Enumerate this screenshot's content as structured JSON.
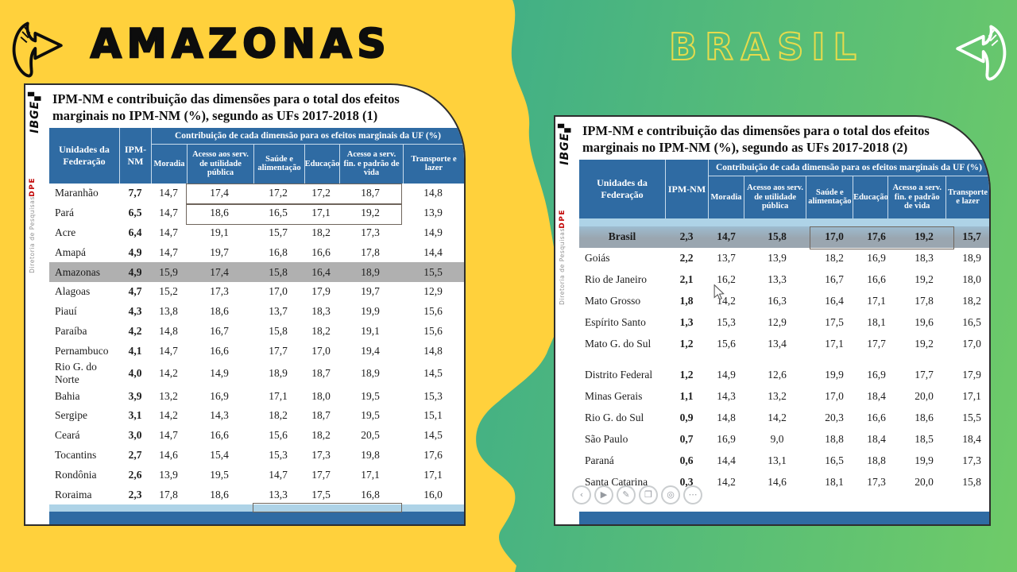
{
  "colors": {
    "yellow_bg": "#ffd13c",
    "teal_bg": "#1b93a1",
    "green_bg": "#6fcb68",
    "header_blue": "#2f6ba3",
    "light_blue_row": "#aed3e7",
    "amazonas_highlight": "#b0b0b0",
    "brasil_highlight": "#9aa6b0",
    "dpe_red": "#c00000",
    "brasil_outline": "#e6db4c"
  },
  "left_panel": {
    "heading": "AMAZONAS",
    "slide": {
      "brand": {
        "logo": "IBGE",
        "dept": "DPE",
        "directorate": "Diretoria de Pesquisas"
      },
      "title": "IPM-NM e contribuição das dimensões para o total dos efeitos marginais no IPM-NM (%), segundo as UFs 2017-2018 (1)",
      "table": {
        "col_uf": "Unidades da Federação",
        "col_ipm": "IPM-NM",
        "group_header": "Contribuição de cada dimensão para os efeitos marginais da UF (%)",
        "dims": [
          "Moradia",
          "Acesso aos serv. de utilidade pública",
          "Saúde e alimentação",
          "Educação",
          "Acesso a serv. fin. e padrão de vida",
          "Transporte e lazer"
        ],
        "rows": [
          {
            "uf": "Maranhão",
            "ipm": "7,7",
            "vals": [
              "14,7",
              "17,4",
              "17,2",
              "17,2",
              "18,7",
              "14,8"
            ],
            "box": [
              1,
              4
            ]
          },
          {
            "uf": "Pará",
            "ipm": "6,5",
            "vals": [
              "14,7",
              "18,6",
              "16,5",
              "17,1",
              "19,2",
              "13,9"
            ],
            "box": [
              1,
              4
            ]
          },
          {
            "uf": "Acre",
            "ipm": "6,4",
            "vals": [
              "14,7",
              "19,1",
              "15,7",
              "18,2",
              "17,3",
              "14,9"
            ]
          },
          {
            "uf": "Amapá",
            "ipm": "4,9",
            "vals": [
              "14,7",
              "19,7",
              "16,8",
              "16,6",
              "17,8",
              "14,4"
            ]
          },
          {
            "uf": "Amazonas",
            "ipm": "4,9",
            "vals": [
              "15,9",
              "17,4",
              "15,8",
              "16,4",
              "18,9",
              "15,5"
            ],
            "highlight": true
          },
          {
            "uf": "Alagoas",
            "ipm": "4,7",
            "vals": [
              "15,2",
              "17,3",
              "17,0",
              "17,9",
              "19,7",
              "12,9"
            ]
          },
          {
            "uf": "Piauí",
            "ipm": "4,3",
            "vals": [
              "13,8",
              "18,6",
              "13,7",
              "18,3",
              "19,9",
              "15,6"
            ]
          },
          {
            "uf": "Paraíba",
            "ipm": "4,2",
            "vals": [
              "14,8",
              "16,7",
              "15,8",
              "18,2",
              "19,1",
              "15,6"
            ]
          },
          {
            "uf": "Pernambuco",
            "ipm": "4,1",
            "vals": [
              "14,7",
              "16,6",
              "17,7",
              "17,0",
              "19,4",
              "14,8"
            ]
          },
          {
            "uf": "Rio G. do Norte",
            "ipm": "4,0",
            "vals": [
              "14,2",
              "14,9",
              "18,9",
              "18,7",
              "18,9",
              "14,5"
            ]
          },
          {
            "uf": "Bahia",
            "ipm": "3,9",
            "vals": [
              "13,2",
              "16,9",
              "17,1",
              "18,0",
              "19,5",
              "15,3"
            ]
          },
          {
            "uf": "Sergipe",
            "ipm": "3,1",
            "vals": [
              "14,2",
              "14,3",
              "18,2",
              "18,7",
              "19,5",
              "15,1"
            ]
          },
          {
            "uf": "Ceará",
            "ipm": "3,0",
            "vals": [
              "14,7",
              "16,6",
              "15,6",
              "18,2",
              "20,5",
              "14,5"
            ]
          },
          {
            "uf": "Tocantins",
            "ipm": "2,7",
            "vals": [
              "14,6",
              "15,4",
              "15,3",
              "17,3",
              "19,8",
              "17,6"
            ]
          },
          {
            "uf": "Rondônia",
            "ipm": "2,6",
            "vals": [
              "13,9",
              "19,5",
              "14,7",
              "17,7",
              "17,1",
              "17,1"
            ]
          },
          {
            "uf": "Roraima",
            "ipm": "2,3",
            "vals": [
              "17,8",
              "18,6",
              "13,3",
              "17,5",
              "16,8",
              "16,0"
            ]
          }
        ]
      }
    }
  },
  "right_panel": {
    "heading": "BRASIL",
    "slide": {
      "brand": {
        "logo": "IBGE",
        "dept": "DPE",
        "directorate": "Diretoria de Pesquisas"
      },
      "title": "IPM-NM e contribuição das dimensões para o total dos efeitos marginais no IPM-NM (%), segundo as UFs 2017-2018 (2)",
      "table": {
        "col_uf": "Unidades da Federação",
        "col_ipm": "IPM-NM",
        "group_header": "Contribuição de cada dimensão para os efeitos marginais da UF (%)",
        "dims": [
          "Moradia",
          "Acesso aos serv. de utilidade pública",
          "Saúde e alimentação",
          "Educação",
          "Acesso a serv. fin. e padrão de vida",
          "Transporte e lazer"
        ],
        "rows": [
          {
            "uf": "Brasil",
            "ipm": "2,3",
            "vals": [
              "14,7",
              "15,8",
              "17,0",
              "17,6",
              "19,2",
              "15,7"
            ],
            "highlight": true,
            "bold": true,
            "box": [
              2,
              4
            ]
          },
          {
            "uf": "Goiás",
            "ipm": "2,2",
            "vals": [
              "13,7",
              "13,9",
              "18,2",
              "16,9",
              "18,3",
              "18,9"
            ]
          },
          {
            "uf": "Rio de Janeiro",
            "ipm": "2,1",
            "vals": [
              "16,2",
              "13,3",
              "16,7",
              "16,6",
              "19,2",
              "18,0"
            ]
          },
          {
            "uf": "Mato Grosso",
            "ipm": "1,8",
            "vals": [
              "14,2",
              "16,3",
              "16,4",
              "17,1",
              "17,8",
              "18,2"
            ]
          },
          {
            "uf": "Espírito Santo",
            "ipm": "1,3",
            "vals": [
              "15,3",
              "12,9",
              "17,5",
              "18,1",
              "19,6",
              "16,5"
            ]
          },
          {
            "uf": "Mato G. do Sul",
            "ipm": "1,2",
            "vals": [
              "15,6",
              "13,4",
              "17,1",
              "17,7",
              "19,2",
              "17,0"
            ]
          },
          {
            "uf": "Distrito Federal",
            "ipm": "1,2",
            "vals": [
              "14,9",
              "12,6",
              "19,9",
              "16,9",
              "17,7",
              "17,9"
            ],
            "gap_before": true
          },
          {
            "uf": "Minas Gerais",
            "ipm": "1,1",
            "vals": [
              "14,3",
              "13,2",
              "17,0",
              "18,4",
              "20,0",
              "17,1"
            ]
          },
          {
            "uf": "Rio G. do Sul",
            "ipm": "0,9",
            "vals": [
              "14,8",
              "14,2",
              "20,3",
              "16,6",
              "18,6",
              "15,5"
            ]
          },
          {
            "uf": "São Paulo",
            "ipm": "0,7",
            "vals": [
              "16,9",
              "9,0",
              "18,8",
              "18,4",
              "18,5",
              "18,4"
            ]
          },
          {
            "uf": "Paraná",
            "ipm": "0,6",
            "vals": [
              "14,4",
              "13,1",
              "16,5",
              "18,8",
              "19,9",
              "17,3"
            ]
          },
          {
            "uf": "Santa Catarina",
            "ipm": "0,3",
            "vals": [
              "14,2",
              "14,6",
              "18,1",
              "17,3",
              "20,0",
              "15,8"
            ]
          }
        ]
      }
    }
  },
  "overlay": {
    "media_controls": [
      {
        "name": "previous-button",
        "glyph": "‹"
      },
      {
        "name": "play-button",
        "glyph": "▶"
      },
      {
        "name": "pencil-button",
        "glyph": "✎"
      },
      {
        "name": "copy-button",
        "glyph": "❐"
      },
      {
        "name": "zoom-button",
        "glyph": "◎"
      },
      {
        "name": "more-button",
        "glyph": "⋯"
      }
    ]
  }
}
